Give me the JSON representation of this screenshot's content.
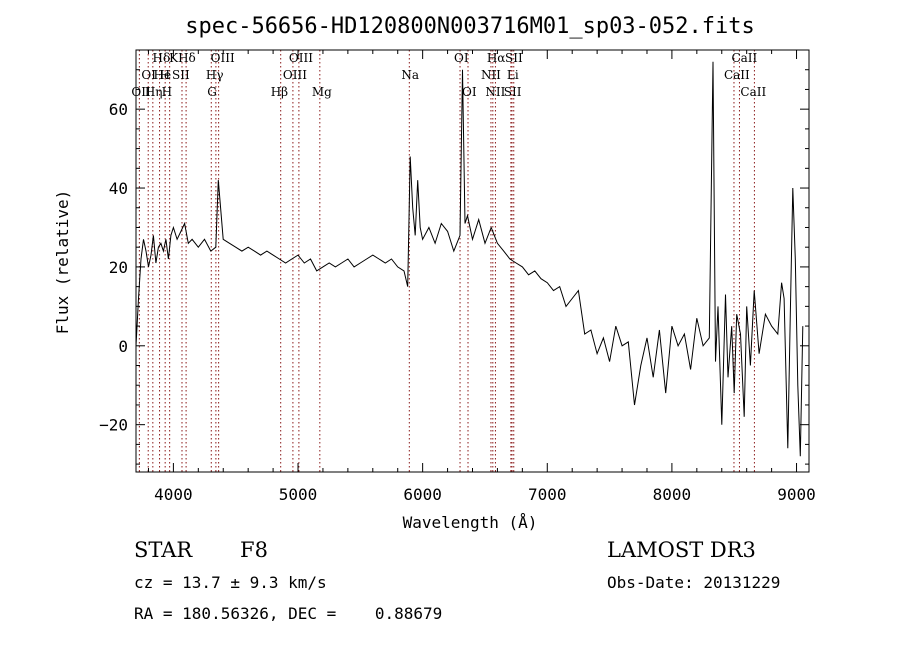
{
  "chart_data": {
    "type": "line",
    "title": "spec-56656-HD120800N003716M01_sp03-052.fits",
    "xlabel": "Wavelength (Å)",
    "ylabel": "Flux (relative)",
    "xlim": [
      3700,
      9100
    ],
    "ylim": [
      -32,
      75
    ],
    "x_ticks": [
      4000,
      5000,
      6000,
      7000,
      8000,
      9000
    ],
    "y_ticks": [
      -20,
      0,
      20,
      40,
      60
    ],
    "grid": false,
    "series": [
      {
        "x": [
          3700,
          3720,
          3740,
          3760,
          3780,
          3800,
          3820,
          3840,
          3860,
          3880,
          3900,
          3920,
          3940,
          3960,
          3980,
          4000,
          4030,
          4060,
          4090,
          4120,
          4150,
          4200,
          4250,
          4300,
          4340,
          4360,
          4400,
          4450,
          4500,
          4550,
          4600,
          4650,
          4700,
          4750,
          4800,
          4850,
          4900,
          4950,
          5000,
          5050,
          5100,
          5150,
          5200,
          5250,
          5300,
          5350,
          5400,
          5450,
          5500,
          5550,
          5600,
          5650,
          5700,
          5750,
          5800,
          5850,
          5880,
          5900,
          5920,
          5940,
          5960,
          5980,
          6000,
          6050,
          6100,
          6150,
          6200,
          6250,
          6300,
          6320,
          6340,
          6360,
          6380,
          6400,
          6450,
          6500,
          6550,
          6600,
          6650,
          6700,
          6750,
          6800,
          6850,
          6900,
          6950,
          7000,
          7050,
          7100,
          7150,
          7200,
          7250,
          7300,
          7350,
          7400,
          7450,
          7500,
          7550,
          7600,
          7650,
          7700,
          7750,
          7800,
          7850,
          7900,
          7950,
          8000,
          8050,
          8100,
          8150,
          8200,
          8250,
          8300,
          8330,
          8350,
          8370,
          8400,
          8430,
          8450,
          8480,
          8500,
          8520,
          8550,
          8580,
          8600,
          8630,
          8660,
          8700,
          8750,
          8800,
          8850,
          8880,
          8900,
          8930,
          8950,
          8970,
          8990,
          9010,
          9030,
          9050
        ],
        "y": [
          0,
          12,
          22,
          27,
          24,
          20,
          23,
          28,
          21,
          25,
          26,
          24,
          27,
          22,
          28,
          30,
          27,
          29,
          31,
          26,
          27,
          25,
          27,
          24,
          25,
          42,
          27,
          26,
          25,
          24,
          25,
          24,
          23,
          24,
          23,
          22,
          21,
          22,
          23,
          21,
          22,
          19,
          20,
          21,
          20,
          21,
          22,
          20,
          21,
          22,
          23,
          22,
          21,
          22,
          20,
          19,
          15,
          48,
          35,
          28,
          42,
          30,
          27,
          30,
          26,
          31,
          29,
          24,
          28,
          70,
          31,
          33,
          30,
          27,
          32,
          26,
          30,
          26,
          24,
          22,
          21,
          20,
          18,
          19,
          17,
          16,
          14,
          15,
          10,
          12,
          14,
          3,
          4,
          -2,
          2,
          -4,
          5,
          0,
          1,
          -15,
          -5,
          2,
          -8,
          4,
          -12,
          5,
          0,
          3,
          -6,
          7,
          0,
          2,
          72,
          -4,
          10,
          -20,
          13,
          -8,
          5,
          -12,
          8,
          3,
          -18,
          10,
          -5,
          14,
          -2,
          8,
          5,
          3,
          16,
          12,
          -26,
          8,
          40,
          22,
          -10,
          -28,
          5
        ]
      }
    ],
    "line_labels": [
      {
        "text": "Hδ",
        "x": 3889,
        "row": 0,
        "dx": -7
      },
      {
        "text": "K",
        "x": 3934,
        "row": 0,
        "dx": 4
      },
      {
        "text": "Hδ",
        "x": 4102,
        "row": 0,
        "dx": -8
      },
      {
        "text": "OIII",
        "x": 4363,
        "row": 0,
        "dx": -8
      },
      {
        "text": "OIII",
        "x": 5007,
        "row": 0,
        "dx": -10
      },
      {
        "text": "OI",
        "x": 6300,
        "row": 0,
        "dx": -6
      },
      {
        "text": "Hα",
        "x": 6563,
        "row": 0,
        "dx": -6
      },
      {
        "text": "SII",
        "x": 6717,
        "row": 0,
        "dx": -7
      },
      {
        "text": "CaII",
        "x": 8542,
        "row": 0,
        "dx": -8
      },
      {
        "text": "OI",
        "x": 3727,
        "row": 1,
        "dx": 2
      },
      {
        "text": "He",
        "x": 3889,
        "row": 1,
        "dx": -6
      },
      {
        "text": "H",
        "x": 3970,
        "row": 1,
        "dx": -10
      },
      {
        "text": "SII",
        "x": 4069,
        "row": 1,
        "dx": -10
      },
      {
        "text": "Hγ",
        "x": 4341,
        "row": 1,
        "dx": -10
      },
      {
        "text": "OIII",
        "x": 4959,
        "row": 1,
        "dx": -10
      },
      {
        "text": "Na",
        "x": 5893,
        "row": 1,
        "dx": -8
      },
      {
        "text": "NII",
        "x": 6548,
        "row": 1,
        "dx": -10
      },
      {
        "text": "Li",
        "x": 6708,
        "row": 1,
        "dx": -4
      },
      {
        "text": "CaII",
        "x": 8498,
        "row": 1,
        "dx": -10
      },
      {
        "text": "OII",
        "x": 3727,
        "row": 2,
        "dx": -8
      },
      {
        "text": "Hη",
        "x": 3835,
        "row": 2,
        "dx": -8
      },
      {
        "text": "H",
        "x": 3970,
        "row": 2,
        "dx": -8
      },
      {
        "text": "G",
        "x": 4304,
        "row": 2,
        "dx": -4
      },
      {
        "text": "Hβ",
        "x": 4861,
        "row": 2,
        "dx": -10
      },
      {
        "text": "Mg",
        "x": 5175,
        "row": 2,
        "dx": -8
      },
      {
        "text": "OI",
        "x": 6364,
        "row": 2,
        "dx": -6
      },
      {
        "text": "NII",
        "x": 6584,
        "row": 2,
        "dx": -10
      },
      {
        "text": "SII",
        "x": 6731,
        "row": 2,
        "dx": -10
      },
      {
        "text": "CaII",
        "x": 8662,
        "row": 2,
        "dx": -14
      }
    ],
    "line_marks": [
      3727,
      3798,
      3835,
      3889,
      3934,
      3970,
      4069,
      4102,
      4304,
      4341,
      4363,
      4861,
      4959,
      5007,
      5175,
      5893,
      6300,
      6364,
      6548,
      6563,
      6584,
      6708,
      6717,
      6731,
      8498,
      8542,
      8662
    ]
  },
  "footer": {
    "object": "STAR",
    "subclass": "F8",
    "survey": "LAMOST DR3",
    "cz": "cz = 13.7 ± 9.3 km/s",
    "obs_date": "Obs-Date: 20131229",
    "coords": "RA = 180.56326, DEC =    0.88679"
  },
  "colors": {
    "line_marker": "#8b1a1a",
    "spectrum": "#000000",
    "axes": "#000000"
  }
}
